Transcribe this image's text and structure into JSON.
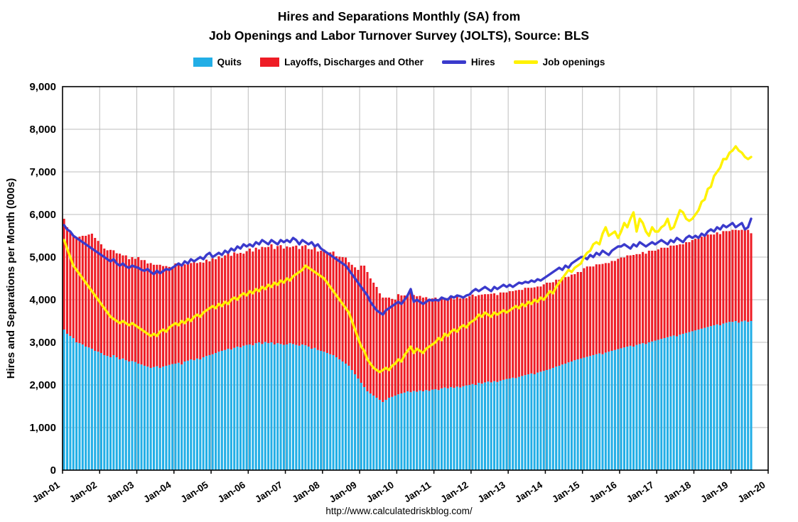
{
  "chart_data": {
    "type": "combo-stacked-bar-line",
    "title": "Hires and Separations Monthly (SA) from",
    "subtitle": "Job Openings and Labor Turnover Survey (JOLTS), Source: BLS",
    "ylabel": "Hires and Separations per Month (000s)",
    "ylim": [
      0,
      9000
    ],
    "ytick_interval": 1000,
    "ytick_labels": [
      "0",
      "1,000",
      "2,000",
      "3,000",
      "4,000",
      "5,000",
      "6,000",
      "7,000",
      "8,000",
      "9,000"
    ],
    "xtick_labels": [
      "Jan-01",
      "Jan-02",
      "Jan-03",
      "Jan-04",
      "Jan-05",
      "Jan-06",
      "Jan-07",
      "Jan-08",
      "Jan-09",
      "Jan-10",
      "Jan-11",
      "Jan-12",
      "Jan-13",
      "Jan-14",
      "Jan-15",
      "Jan-16",
      "Jan-17",
      "Jan-18",
      "Jan-19",
      "Jan-20"
    ],
    "x_axis_total_months": 228,
    "grid": true,
    "legend_position": "top",
    "footer": "http://www.calculatedriskblog.com/",
    "colors": {
      "grid": "#bdbdbd",
      "frame": "#000000"
    },
    "series": [
      {
        "name": "Quits",
        "type": "bar-stack",
        "color": "#22aee6",
        "values": [
          3300,
          3200,
          3150,
          3100,
          3000,
          2980,
          2950,
          2900,
          2880,
          2850,
          2800,
          2780,
          2750,
          2700,
          2680,
          2650,
          2700,
          2650,
          2600,
          2620,
          2580,
          2550,
          2560,
          2540,
          2500,
          2480,
          2450,
          2430,
          2400,
          2420,
          2440,
          2400,
          2430,
          2450,
          2470,
          2490,
          2500,
          2520,
          2480,
          2550,
          2570,
          2600,
          2580,
          2620,
          2600,
          2650,
          2680,
          2700,
          2720,
          2750,
          2780,
          2800,
          2820,
          2850,
          2830,
          2870,
          2900,
          2880,
          2920,
          2940,
          2950,
          2930,
          2980,
          3000,
          2960,
          3010,
          2980,
          3000,
          2950,
          2980,
          2960,
          2940,
          2950,
          2980,
          2960,
          2940,
          2920,
          2950,
          2930,
          2900,
          2850,
          2870,
          2820,
          2800,
          2780,
          2750,
          2720,
          2700,
          2650,
          2600,
          2550,
          2500,
          2450,
          2350,
          2250,
          2150,
          2050,
          1950,
          1850,
          1800,
          1750,
          1700,
          1650,
          1600,
          1650,
          1700,
          1720,
          1750,
          1780,
          1800,
          1820,
          1850,
          1830,
          1860,
          1840,
          1870,
          1850,
          1880,
          1860,
          1890,
          1900,
          1880,
          1920,
          1940,
          1920,
          1950,
          1930,
          1960,
          1940,
          1970,
          1990,
          2000,
          2020,
          2000,
          2050,
          2030,
          2060,
          2080,
          2060,
          2090,
          2070,
          2100,
          2120,
          2140,
          2150,
          2170,
          2160,
          2190,
          2210,
          2230,
          2250,
          2270,
          2250,
          2290,
          2310,
          2330,
          2350,
          2370,
          2400,
          2430,
          2450,
          2480,
          2500,
          2530,
          2550,
          2580,
          2600,
          2620,
          2640,
          2660,
          2680,
          2700,
          2720,
          2740,
          2720,
          2760,
          2780,
          2800,
          2820,
          2840,
          2860,
          2880,
          2900,
          2920,
          2900,
          2940,
          2960,
          2980,
          2960,
          3000,
          3020,
          3040,
          3060,
          3080,
          3100,
          3120,
          3140,
          3160,
          3140,
          3180,
          3200,
          3220,
          3240,
          3260,
          3280,
          3300,
          3320,
          3340,
          3360,
          3380,
          3400,
          3420,
          3400,
          3440,
          3460,
          3480,
          3480,
          3500,
          3460,
          3490,
          3510,
          3480,
          3500
        ]
      },
      {
        "name": "Layoffs, Discharges and Other",
        "type": "bar-stack",
        "color": "#ee1c25",
        "values": [
          2600,
          2500,
          2450,
          2400,
          2450,
          2500,
          2550,
          2600,
          2650,
          2700,
          2650,
          2600,
          2550,
          2500,
          2480,
          2520,
          2460,
          2440,
          2480,
          2420,
          2460,
          2400,
          2440,
          2420,
          2500,
          2450,
          2480,
          2420,
          2460,
          2400,
          2380,
          2420,
          2360,
          2340,
          2300,
          2280,
          2350,
          2300,
          2340,
          2280,
          2320,
          2260,
          2300,
          2240,
          2280,
          2220,
          2260,
          2200,
          2250,
          2200,
          2240,
          2180,
          2220,
          2260,
          2200,
          2240,
          2180,
          2220,
          2160,
          2200,
          2250,
          2200,
          2240,
          2180,
          2280,
          2220,
          2260,
          2300,
          2240,
          2280,
          2320,
          2260,
          2300,
          2250,
          2290,
          2330,
          2270,
          2310,
          2350,
          2290,
          2330,
          2370,
          2310,
          2350,
          2400,
          2350,
          2390,
          2430,
          2370,
          2410,
          2450,
          2490,
          2430,
          2470,
          2510,
          2550,
          2750,
          2850,
          2800,
          2700,
          2650,
          2600,
          2500,
          2450,
          2400,
          2350,
          2300,
          2250,
          2350,
          2300,
          2280,
          2260,
          2380,
          2250,
          2240,
          2220,
          2200,
          2180,
          2160,
          2140,
          2150,
          2130,
          2110,
          2090,
          2120,
          2100,
          2080,
          2110,
          2090,
          2070,
          2050,
          2080,
          2100,
          2080,
          2060,
          2090,
          2070,
          2050,
          2080,
          2060,
          2040,
          2070,
          2050,
          2030,
          2050,
          2030,
          2060,
          2040,
          2020,
          2050,
          2030,
          2010,
          2040,
          2020,
          2000,
          2030,
          2050,
          2030,
          2010,
          2040,
          2020,
          2050,
          2030,
          2010,
          2040,
          2020,
          2050,
          2030,
          2100,
          2120,
          2100,
          2080,
          2110,
          2090,
          2120,
          2100,
          2080,
          2110,
          2090,
          2120,
          2130,
          2110,
          2140,
          2120,
          2150,
          2130,
          2110,
          2140,
          2120,
          2150,
          2130,
          2110,
          2120,
          2140,
          2120,
          2100,
          2130,
          2110,
          2140,
          2120,
          2100,
          2130,
          2110,
          2140,
          2150,
          2130,
          2160,
          2140,
          2170,
          2150,
          2130,
          2160,
          2140,
          2170,
          2150,
          2130,
          2160,
          2140,
          2170,
          2150,
          2130,
          2160,
          2060
        ]
      },
      {
        "name": "Hires",
        "type": "line",
        "color": "#3a3acc",
        "values": [
          5750,
          5650,
          5600,
          5500,
          5450,
          5400,
          5350,
          5300,
          5250,
          5200,
          5150,
          5100,
          5050,
          5000,
          4950,
          4900,
          4950,
          4850,
          4800,
          4850,
          4780,
          4750,
          4800,
          4770,
          4750,
          4700,
          4680,
          4720,
          4650,
          4600,
          4680,
          4620,
          4670,
          4720,
          4700,
          4750,
          4800,
          4850,
          4800,
          4900,
          4850,
          4950,
          4900,
          4950,
          5000,
          4950,
          5050,
          5100,
          5000,
          5050,
          5100,
          5050,
          5150,
          5100,
          5200,
          5150,
          5250,
          5200,
          5300,
          5250,
          5300,
          5250,
          5350,
          5300,
          5400,
          5350,
          5300,
          5400,
          5350,
          5300,
          5400,
          5350,
          5400,
          5350,
          5450,
          5400,
          5300,
          5400,
          5350,
          5300,
          5350,
          5250,
          5300,
          5200,
          5150,
          5100,
          5050,
          5000,
          4950,
          4900,
          4850,
          4800,
          4700,
          4600,
          4500,
          4400,
          4300,
          4200,
          4100,
          3950,
          3850,
          3750,
          3700,
          3650,
          3750,
          3800,
          3850,
          3900,
          3950,
          3900,
          4000,
          4100,
          4250,
          3950,
          4000,
          3950,
          3900,
          3950,
          4000,
          3980,
          4000,
          3980,
          4050,
          4020,
          4000,
          4080,
          4050,
          4100,
          4080,
          4050,
          4100,
          4120,
          4200,
          4250,
          4200,
          4250,
          4300,
          4250,
          4200,
          4300,
          4250,
          4300,
          4350,
          4300,
          4350,
          4300,
          4350,
          4400,
          4380,
          4420,
          4400,
          4450,
          4420,
          4480,
          4450,
          4500,
          4550,
          4600,
          4650,
          4700,
          4750,
          4700,
          4800,
          4750,
          4850,
          4900,
          4950,
          5000,
          5000,
          4950,
          5050,
          5000,
          5100,
          5050,
          5150,
          5100,
          5050,
          5150,
          5200,
          5250,
          5250,
          5300,
          5250,
          5200,
          5300,
          5250,
          5350,
          5300,
          5250,
          5300,
          5350,
          5300,
          5350,
          5400,
          5350,
          5300,
          5400,
          5350,
          5450,
          5400,
          5350,
          5450,
          5500,
          5450,
          5500,
          5450,
          5550,
          5500,
          5600,
          5650,
          5600,
          5700,
          5650,
          5750,
          5700,
          5750,
          5800,
          5700,
          5750,
          5800,
          5650,
          5700,
          5900
        ]
      },
      {
        "name": "Job openings",
        "type": "line",
        "color": "#fff200",
        "values": [
          5400,
          5200,
          5000,
          4800,
          4700,
          4600,
          4500,
          4400,
          4300,
          4200,
          4100,
          4000,
          3900,
          3800,
          3700,
          3600,
          3550,
          3500,
          3450,
          3500,
          3450,
          3400,
          3450,
          3400,
          3350,
          3300,
          3250,
          3200,
          3150,
          3200,
          3150,
          3250,
          3300,
          3250,
          3350,
          3400,
          3450,
          3400,
          3500,
          3450,
          3550,
          3500,
          3600,
          3650,
          3600,
          3700,
          3750,
          3800,
          3850,
          3800,
          3900,
          3850,
          3950,
          3900,
          4000,
          4050,
          4000,
          4100,
          4150,
          4100,
          4200,
          4150,
          4250,
          4200,
          4300,
          4250,
          4350,
          4300,
          4400,
          4350,
          4450,
          4400,
          4500,
          4450,
          4550,
          4600,
          4650,
          4700,
          4800,
          4750,
          4700,
          4650,
          4600,
          4550,
          4500,
          4400,
          4300,
          4200,
          4100,
          4000,
          3900,
          3800,
          3700,
          3500,
          3300,
          3100,
          2900,
          2800,
          2600,
          2500,
          2400,
          2350,
          2300,
          2350,
          2400,
          2350,
          2450,
          2500,
          2600,
          2550,
          2700,
          2800,
          2900,
          2750,
          2850,
          2800,
          2750,
          2850,
          2900,
          2950,
          3000,
          3100,
          3050,
          3200,
          3150,
          3250,
          3300,
          3250,
          3350,
          3400,
          3350,
          3450,
          3500,
          3550,
          3650,
          3600,
          3700,
          3650,
          3600,
          3700,
          3650,
          3700,
          3750,
          3700,
          3750,
          3800,
          3850,
          3800,
          3900,
          3850,
          3950,
          3900,
          4000,
          3950,
          4050,
          4000,
          4100,
          4200,
          4150,
          4300,
          4400,
          4500,
          4600,
          4700,
          4650,
          4750,
          4800,
          4850,
          5000,
          5100,
          5150,
          5300,
          5350,
          5300,
          5550,
          5700,
          5500,
          5550,
          5600,
          5450,
          5600,
          5800,
          5700,
          5900,
          6050,
          5600,
          5900,
          5800,
          5600,
          5500,
          5700,
          5600,
          5600,
          5700,
          5750,
          5900,
          5650,
          5700,
          5900,
          6100,
          6050,
          5900,
          5850,
          5900,
          6000,
          6100,
          6300,
          6350,
          6600,
          6650,
          6900,
          7000,
          7100,
          7300,
          7300,
          7450,
          7500,
          7600,
          7500,
          7450,
          7350,
          7300,
          7350
        ]
      }
    ]
  }
}
